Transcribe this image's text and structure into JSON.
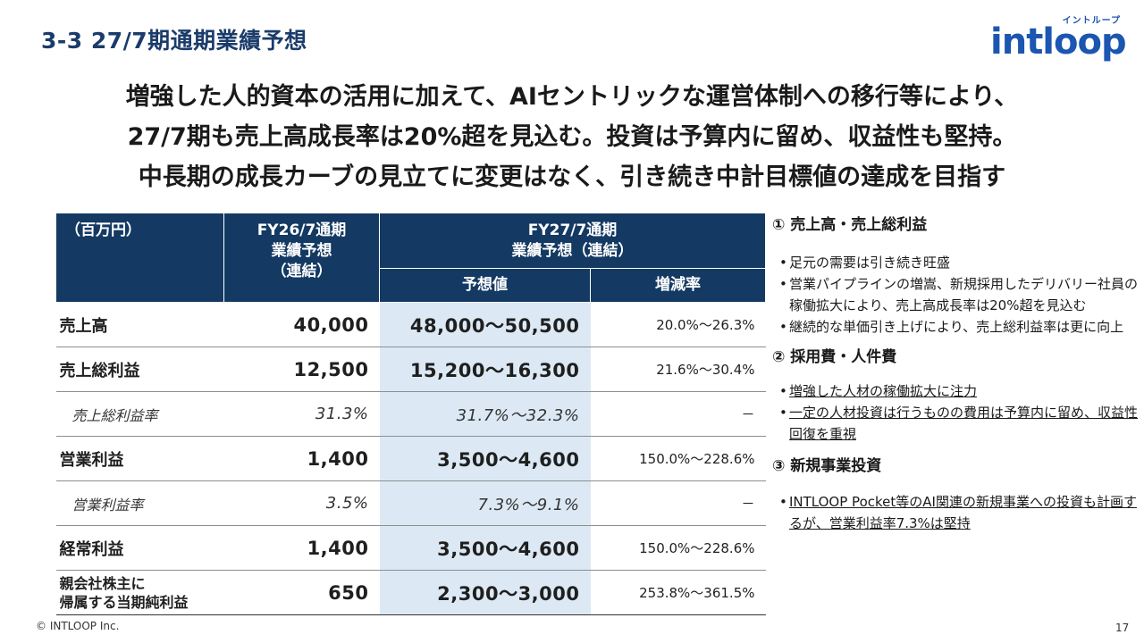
{
  "slide_title": "3-3 27/7期通期業績予想",
  "logo": {
    "kana": "イントループ",
    "text": "intloop"
  },
  "headline": [
    "増強した人的資本の活用に加えて、AIセントリックな運営体制への移行等により、",
    "27/7期も売上高成長率は20%超を見込む。投資は予算内に留め、収益性も堅持。",
    "中長期の成長カーブの見立てに変更はなく、引き続き中計目標値の達成を目指す"
  ],
  "table": {
    "corner": "（百万円）",
    "fy26_line1": "FY26/7通期",
    "fy26_line2": "業績予想",
    "fy26_line3": "（連結）",
    "fy27_line1": "FY27/7通期",
    "fy27_line2": "業績予想（連結）",
    "col_forecast": "予想値",
    "col_change": "増減率",
    "rows": [
      {
        "label": "売上高",
        "fy26": "40,000",
        "fy27": "48,000～50,500",
        "change": "20.0%～26.3%"
      },
      {
        "label": "売上総利益",
        "fy26": "12,500",
        "fy27": "15,200～16,300",
        "change": "21.6%～30.4%"
      },
      {
        "label": "売上総利益率",
        "fy26": "31.3%",
        "fy27": "31.7%～32.3%",
        "change": "－"
      },
      {
        "label": "営業利益",
        "fy26": "1,400",
        "fy27": "3,500～4,600",
        "change": "150.0%～228.6%"
      },
      {
        "label": "営業利益率",
        "fy26": "3.5%",
        "fy27": "7.3%～9.1%",
        "change": "－"
      },
      {
        "label": "経常利益",
        "fy26": "1,400",
        "fy27": "3,500～4,600",
        "change": "150.0%～228.6%"
      },
      {
        "label_line1": "親会社株主に",
        "label_line2": "帰属する当期純利益",
        "fy26": "650",
        "fy27": "2,300～3,000",
        "change": "253.8%～361.5%"
      }
    ]
  },
  "notes": {
    "sections": [
      {
        "heading": "① 売上高・売上総利益",
        "bullets": [
          "足元の需要は引き続き旺盛",
          "営業パイプラインの増嵩、新規採用したデリバリー社員の稼働拡大により、売上高成長率は20%超を見込む",
          "継続的な単価引き上げにより、売上総利益率は更に向上"
        ]
      },
      {
        "heading": "②  採用費・人件費",
        "bullets": [
          "増強した人材の稼働拡大に注力",
          "一定の人材投資は行うものの費用は予算内に留め、収益性回復を重視"
        ]
      },
      {
        "heading": "③  新規事業投資",
        "bullets": [
          "INTLOOP Pocket等のAI関連の新規事業への投資も計画するが、営業利益率7.3%は堅持"
        ]
      }
    ],
    "bullet_glyph": "•"
  },
  "footer": {
    "copyright": "© INTLOOP Inc.",
    "page": "17"
  }
}
